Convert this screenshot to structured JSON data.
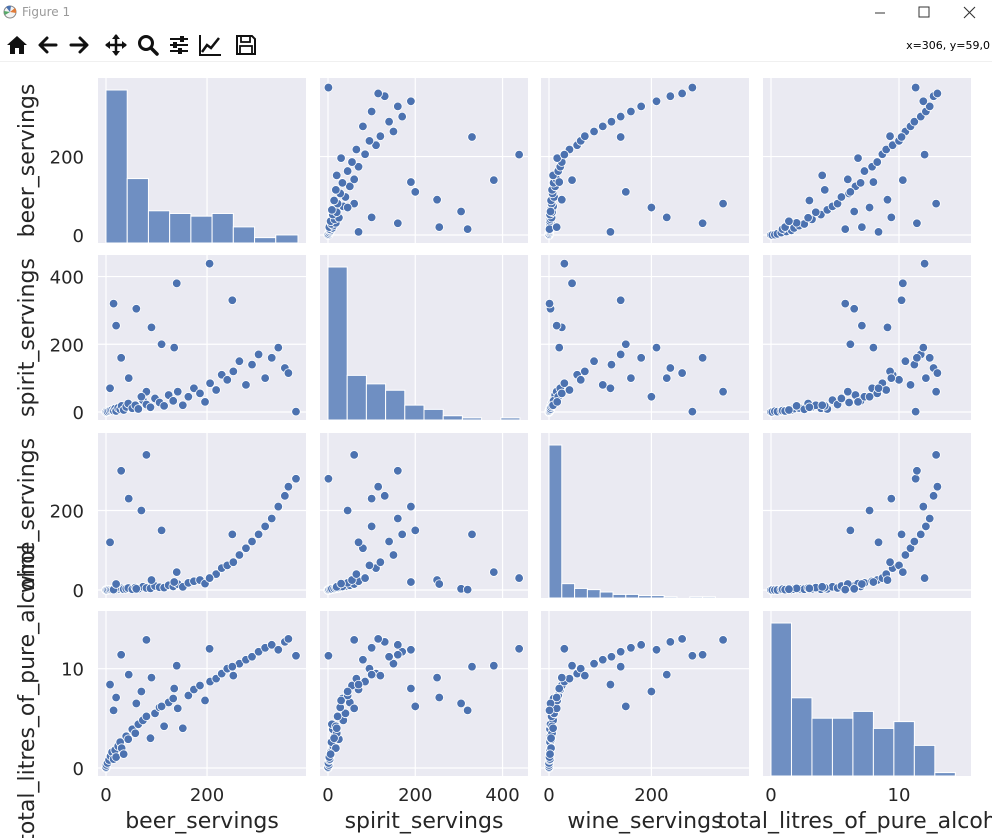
{
  "window": {
    "title": "Figure 1",
    "controls": [
      "minimize",
      "maximize",
      "close"
    ]
  },
  "toolbar": {
    "icons": [
      "home-icon",
      "back-arrow-icon",
      "forward-arrow-icon",
      "pan-icon",
      "zoom-icon",
      "configure-subplots-icon",
      "edit-axis-icon",
      "save-icon"
    ],
    "coords": "x=306, y=59,0"
  },
  "theme": {
    "panel_bg": "#eaeaf2",
    "grid": "#ffffff",
    "marker": "#4c72b0",
    "bar": "#6f8fc2"
  },
  "chart_data": {
    "type": "pairplot",
    "title": "",
    "variables": [
      "beer_servings",
      "spirit_servings",
      "wine_servings",
      "total_litres_of_pure_alcohol"
    ],
    "axis_labels": {
      "x": [
        "beer_servings",
        "spirit_servings",
        "wine_servings",
        "total_litres_of_pure_alcohol"
      ],
      "y": [
        "beer_servings",
        "spirit_servings",
        "wine_servings",
        "total_litres_of_pure_alcohol"
      ]
    },
    "ranges": [
      [
        0,
        380
      ],
      [
        0,
        440
      ],
      [
        0,
        375
      ],
      [
        0,
        15
      ]
    ],
    "ticks": [
      [
        0,
        200
      ],
      [
        0,
        200,
        400
      ],
      [
        0,
        200
      ],
      [
        0,
        10
      ]
    ],
    "diagonal_histograms": [
      {
        "variable": "beer_servings",
        "bin_edges": [
          0,
          42,
          84,
          126,
          168,
          210,
          252,
          294,
          336,
          380
        ],
        "counts": [
          57,
          24,
          12,
          11,
          10,
          11,
          6,
          2,
          3
        ]
      },
      {
        "variable": "spirit_servings",
        "bin_edges": [
          0,
          44,
          88,
          132,
          176,
          220,
          264,
          308,
          352,
          396,
          440
        ],
        "counts": [
          72,
          21,
          17,
          14,
          7,
          5,
          2,
          1,
          0,
          1
        ]
      },
      {
        "variable": "wine_servings",
        "bin_edges": [
          0,
          25,
          50,
          75,
          100,
          125,
          150,
          175,
          200,
          225,
          250,
          275,
          300,
          325,
          350,
          375
        ],
        "counts": [
          128,
          12,
          8,
          7,
          5,
          3,
          3,
          2,
          2,
          1,
          0,
          1,
          1,
          0,
          0
        ]
      },
      {
        "variable": "total_litres_of_pure_alcohol",
        "bin_edges": [
          0,
          1.6,
          3.2,
          4.8,
          6.4,
          8,
          9.6,
          11.2,
          12.8,
          14.4
        ],
        "counts": [
          45,
          23,
          17,
          17,
          19,
          14,
          16,
          9,
          1
        ]
      }
    ],
    "observations": [
      [
        0,
        0,
        0,
        0
      ],
      [
        0,
        0,
        0,
        0.1
      ],
      [
        1,
        2,
        0,
        0.3
      ],
      [
        3,
        1,
        0,
        0.5
      ],
      [
        6,
        3,
        1,
        0.8
      ],
      [
        9,
        5,
        1,
        1.2
      ],
      [
        12,
        6,
        1,
        1.6
      ],
      [
        15,
        4,
        2,
        0.9
      ],
      [
        18,
        10,
        2,
        1.8
      ],
      [
        20,
        3,
        1,
        1.1
      ],
      [
        24,
        12,
        3,
        2.2
      ],
      [
        28,
        8,
        2,
        2.6
      ],
      [
        31,
        18,
        4,
        2.0
      ],
      [
        35,
        6,
        2,
        1.4
      ],
      [
        40,
        15,
        3,
        3.2
      ],
      [
        44,
        25,
        5,
        2.9
      ],
      [
        52,
        11,
        2,
        3.9
      ],
      [
        58,
        20,
        6,
        3.5
      ],
      [
        64,
        9,
        3,
        4.4
      ],
      [
        73,
        35,
        8,
        4.8
      ],
      [
        80,
        22,
        5,
        5.2
      ],
      [
        88,
        14,
        4,
        3.0
      ],
      [
        97,
        40,
        10,
        5.5
      ],
      [
        106,
        28,
        7,
        6.1
      ],
      [
        115,
        18,
        6,
        4.2
      ],
      [
        124,
        50,
        12,
        6.6
      ],
      [
        133,
        33,
        9,
        7.0
      ],
      [
        142,
        60,
        15,
        6.0
      ],
      [
        152,
        20,
        8,
        4.0
      ],
      [
        163,
        45,
        18,
        7.3
      ],
      [
        174,
        70,
        22,
        7.9
      ],
      [
        186,
        55,
        25,
        8.3
      ],
      [
        196,
        30,
        16,
        6.8
      ],
      [
        206,
        85,
        30,
        8.7
      ],
      [
        218,
        65,
        40,
        9.0
      ],
      [
        229,
        110,
        55,
        9.5
      ],
      [
        240,
        95,
        62,
        10.0
      ],
      [
        252,
        120,
        70,
        9.3
      ],
      [
        264,
        150,
        88,
        10.5
      ],
      [
        277,
        80,
        105,
        10.9
      ],
      [
        289,
        140,
        122,
        11.2
      ],
      [
        302,
        170,
        140,
        11.7
      ],
      [
        315,
        100,
        160,
        12.1
      ],
      [
        328,
        160,
        180,
        12.4
      ],
      [
        341,
        190,
        210,
        11.9
      ],
      [
        354,
        130,
        237,
        12.7
      ],
      [
        361,
        115,
        260,
        13.0
      ],
      [
        376,
        1,
        280,
        11.3
      ],
      [
        250,
        330,
        140,
        10.2
      ],
      [
        135,
        190,
        20,
        8.0
      ],
      [
        90,
        250,
        25,
        9.1
      ],
      [
        140,
        380,
        45,
        10.3
      ],
      [
        205,
        438,
        30,
        12.0
      ],
      [
        60,
        305,
        3,
        6.5
      ],
      [
        15,
        320,
        1,
        5.8
      ],
      [
        20,
        255,
        15,
        7.1
      ],
      [
        110,
        200,
        150,
        6.2
      ],
      [
        45,
        100,
        230,
        9.4
      ],
      [
        80,
        60,
        340,
        12.9
      ],
      [
        30,
        160,
        300,
        11.4
      ],
      [
        8,
        70,
        120,
        8.4
      ],
      [
        70,
        45,
        200,
        7.7
      ]
    ]
  }
}
